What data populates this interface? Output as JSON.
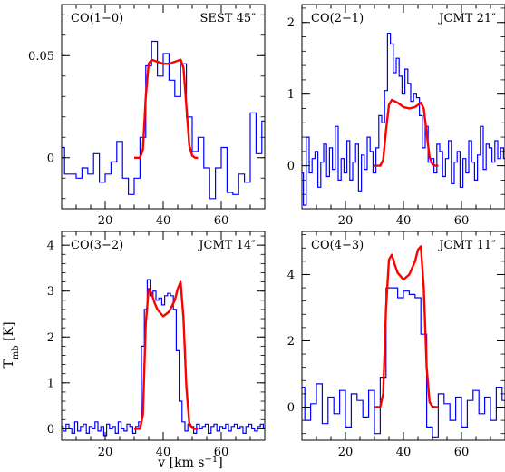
{
  "figure": {
    "ylabel": "T",
    "ylabel_sub": "mb",
    "ylabel_unit": " [K]",
    "xlabel_main": "v [km s",
    "xlabel_sup": "−1",
    "xlabel_end": "]"
  },
  "chart_data": [
    {
      "type": "line",
      "title": "CO(1−0)",
      "telescope": "SEST 45″",
      "xlim": [
        5,
        75
      ],
      "ylim": [
        -0.025,
        0.075
      ],
      "xticks": [
        20,
        40,
        60
      ],
      "yticks": [
        0,
        0.05
      ],
      "ytick_labels": [
        "0",
        "0.05"
      ],
      "series": [
        {
          "kind": "observed",
          "color": "#0000ff",
          "x": [
            5,
            7,
            9,
            11,
            13,
            15,
            17,
            19,
            21,
            23,
            25,
            27,
            29,
            31,
            33,
            35,
            37,
            39,
            41,
            43,
            45,
            47,
            49,
            51,
            53,
            55,
            57,
            59,
            61,
            63,
            65,
            67,
            69,
            71,
            73,
            75
          ],
          "y": [
            0.005,
            -0.008,
            -0.008,
            -0.01,
            -0.005,
            -0.008,
            0.002,
            -0.012,
            -0.008,
            -0.002,
            0.008,
            -0.01,
            -0.018,
            -0.01,
            0.01,
            0.045,
            0.057,
            0.04,
            0.051,
            0.038,
            0.03,
            0.046,
            0.02,
            0.003,
            0.01,
            -0.005,
            -0.02,
            -0.005,
            0.005,
            -0.017,
            -0.018,
            -0.008,
            -0.012,
            0.022,
            0.002,
            0.018
          ]
        },
        {
          "kind": "model",
          "color": "#ff0000",
          "x": [
            30,
            32,
            33,
            34,
            35,
            36,
            38,
            40,
            42,
            44,
            46,
            47,
            48,
            49,
            50,
            51,
            52
          ],
          "y": [
            0,
            0,
            0.004,
            0.03,
            0.046,
            0.048,
            0.047,
            0.046,
            0.046,
            0.047,
            0.048,
            0.044,
            0.025,
            0.006,
            0.001,
            0,
            0
          ]
        }
      ]
    },
    {
      "type": "line",
      "title": "CO(2−1)",
      "telescope": "JCMT 21″",
      "xlim": [
        5,
        75
      ],
      "ylim": [
        -0.6,
        2.25
      ],
      "xticks": [
        20,
        40,
        60
      ],
      "yticks": [
        0,
        1,
        2
      ],
      "ytick_labels": [
        "0",
        "1",
        "2"
      ],
      "series": [
        {
          "kind": "observed",
          "color": "#0000ff",
          "x": [
            5,
            6,
            7,
            8,
            9,
            10,
            11,
            12,
            13,
            14,
            15,
            16,
            17,
            18,
            19,
            20,
            21,
            22,
            23,
            24,
            25,
            26,
            27,
            28,
            29,
            30,
            31,
            32,
            33,
            34,
            35,
            36,
            37,
            38,
            39,
            40,
            41,
            42,
            43,
            44,
            45,
            46,
            47,
            48,
            49,
            50,
            51,
            52,
            53,
            54,
            55,
            56,
            57,
            58,
            59,
            60,
            61,
            62,
            63,
            64,
            65,
            66,
            67,
            68,
            69,
            70,
            71,
            72,
            73,
            74,
            75
          ],
          "y": [
            -0.1,
            -0.55,
            0.4,
            -0.1,
            0.1,
            0.2,
            -0.3,
            0.05,
            0.3,
            -0.15,
            0.25,
            -0.05,
            0.55,
            -0.2,
            0.1,
            -0.1,
            0.35,
            -0.2,
            0.05,
            0.3,
            -0.35,
            0.15,
            -0.05,
            0.4,
            0.2,
            -0.1,
            0.25,
            0.7,
            0.6,
            1.05,
            1.85,
            1.7,
            1.3,
            1.5,
            1.25,
            1.0,
            1.35,
            1.15,
            0.9,
            1.0,
            0.95,
            0.7,
            0.25,
            0.55,
            0.05,
            0.1,
            -0.1,
            0.3,
            0.2,
            -0.15,
            0.1,
            0.35,
            -0.25,
            0.05,
            0.2,
            -0.3,
            0.1,
            -0.1,
            0.35,
            0.05,
            -0.2,
            0.15,
            0.55,
            -0.05,
            0.3,
            0.25,
            0.05,
            0.35,
            0.1,
            0.25,
            0.1
          ]
        },
        {
          "kind": "model",
          "color": "#ff0000",
          "x": [
            30,
            32,
            33,
            34,
            35,
            36,
            38,
            40,
            42,
            44,
            46,
            47,
            48,
            49,
            50,
            51,
            52
          ],
          "y": [
            0,
            0,
            0.08,
            0.5,
            0.85,
            0.92,
            0.88,
            0.82,
            0.8,
            0.82,
            0.88,
            0.8,
            0.45,
            0.12,
            0.02,
            0,
            0
          ]
        }
      ]
    },
    {
      "type": "line",
      "title": "CO(3−2)",
      "telescope": "JCMT 14″",
      "xlim": [
        5,
        75
      ],
      "ylim": [
        -0.25,
        4.3
      ],
      "xticks": [
        20,
        40,
        60
      ],
      "yticks": [
        0,
        1,
        2,
        3,
        4
      ],
      "ytick_labels": [
        "0",
        "1",
        "2",
        "3",
        "4"
      ],
      "series": [
        {
          "kind": "observed",
          "color": "#0000ff",
          "x": [
            5,
            6,
            7,
            8,
            9,
            10,
            11,
            12,
            13,
            14,
            15,
            16,
            17,
            18,
            19,
            20,
            21,
            22,
            23,
            24,
            25,
            26,
            27,
            28,
            29,
            30,
            31,
            32,
            33,
            34,
            35,
            36,
            37,
            38,
            39,
            40,
            41,
            42,
            43,
            44,
            45,
            46,
            47,
            48,
            49,
            50,
            51,
            52,
            53,
            54,
            55,
            56,
            57,
            58,
            59,
            60,
            61,
            62,
            63,
            64,
            65,
            66,
            67,
            68,
            69,
            70,
            71,
            72,
            73,
            74,
            75
          ],
          "y": [
            0.05,
            -0.05,
            0.1,
            0,
            -0.1,
            0.15,
            -0.05,
            0.05,
            0.1,
            -0.1,
            0.05,
            0,
            0.15,
            -0.05,
            0.05,
            -0.15,
            0.1,
            0,
            0.05,
            -0.1,
            0.15,
            0,
            -0.05,
            0.1,
            0.05,
            -0.1,
            0.05,
            0.15,
            1.8,
            2.6,
            3.25,
            2.9,
            3.0,
            2.8,
            2.85,
            2.7,
            2.9,
            2.95,
            2.9,
            2.6,
            1.7,
            0.6,
            0.15,
            -0.05,
            0.1,
            0.05,
            -0.1,
            0.1,
            0,
            0.05,
            0.1,
            -0.1,
            0.05,
            0.1,
            -0.05,
            0.05,
            0,
            0.1,
            -0.05,
            0.05,
            0.1,
            0,
            0.05,
            -0.1,
            0.05,
            0.1,
            0,
            -0.05,
            0.05,
            0.1,
            0
          ]
        },
        {
          "kind": "model",
          "color": "#ff0000",
          "x": [
            30,
            32,
            33,
            34,
            35,
            36,
            37,
            38,
            40,
            42,
            44,
            45,
            46,
            47,
            48,
            49,
            50,
            51,
            52
          ],
          "y": [
            0,
            0,
            0.3,
            2.3,
            3.05,
            2.95,
            2.75,
            2.6,
            2.45,
            2.55,
            2.8,
            3.05,
            3.2,
            2.4,
            0.9,
            0.12,
            0.02,
            0,
            0
          ]
        }
      ]
    },
    {
      "type": "line",
      "title": "CO(4−3)",
      "telescope": "JCMT 11″",
      "xlim": [
        5,
        75
      ],
      "ylim": [
        -1.0,
        5.3
      ],
      "xticks": [
        20,
        40,
        60
      ],
      "yticks": [
        0,
        2,
        4
      ],
      "ytick_labels": [
        "0",
        "2",
        "4"
      ],
      "series": [
        {
          "kind": "observed",
          "color": "#0000ff",
          "x": [
            5,
            7,
            9,
            11,
            13,
            15,
            17,
            19,
            21,
            23,
            25,
            27,
            29,
            31,
            33,
            35,
            37,
            39,
            41,
            43,
            45,
            47,
            49,
            51,
            53,
            55,
            57,
            59,
            61,
            63,
            65,
            67,
            69,
            71,
            73,
            75
          ],
          "y": [
            0.6,
            -0.4,
            0.1,
            0.7,
            -0.5,
            0.3,
            -0.2,
            0.5,
            -0.6,
            0.4,
            0.2,
            -0.3,
            0.5,
            -0.8,
            0.9,
            3.6,
            3.6,
            3.3,
            3.5,
            3.4,
            3.3,
            2.2,
            -0.6,
            -0.9,
            0.4,
            0.1,
            -0.4,
            0.3,
            -0.6,
            0.2,
            0.5,
            -0.2,
            0.3,
            -0.4,
            0.6,
            0.2
          ]
        },
        {
          "kind": "model",
          "color": "#ff0000",
          "x": [
            30,
            32,
            33,
            34,
            35,
            36,
            37,
            38,
            40,
            42,
            44,
            45,
            46,
            47,
            48,
            49,
            50,
            51,
            52
          ],
          "y": [
            0,
            0,
            0.4,
            3.0,
            4.45,
            4.6,
            4.3,
            4.05,
            3.85,
            4.0,
            4.4,
            4.75,
            4.85,
            3.6,
            1.2,
            0.15,
            0.02,
            0,
            0
          ]
        }
      ]
    }
  ]
}
